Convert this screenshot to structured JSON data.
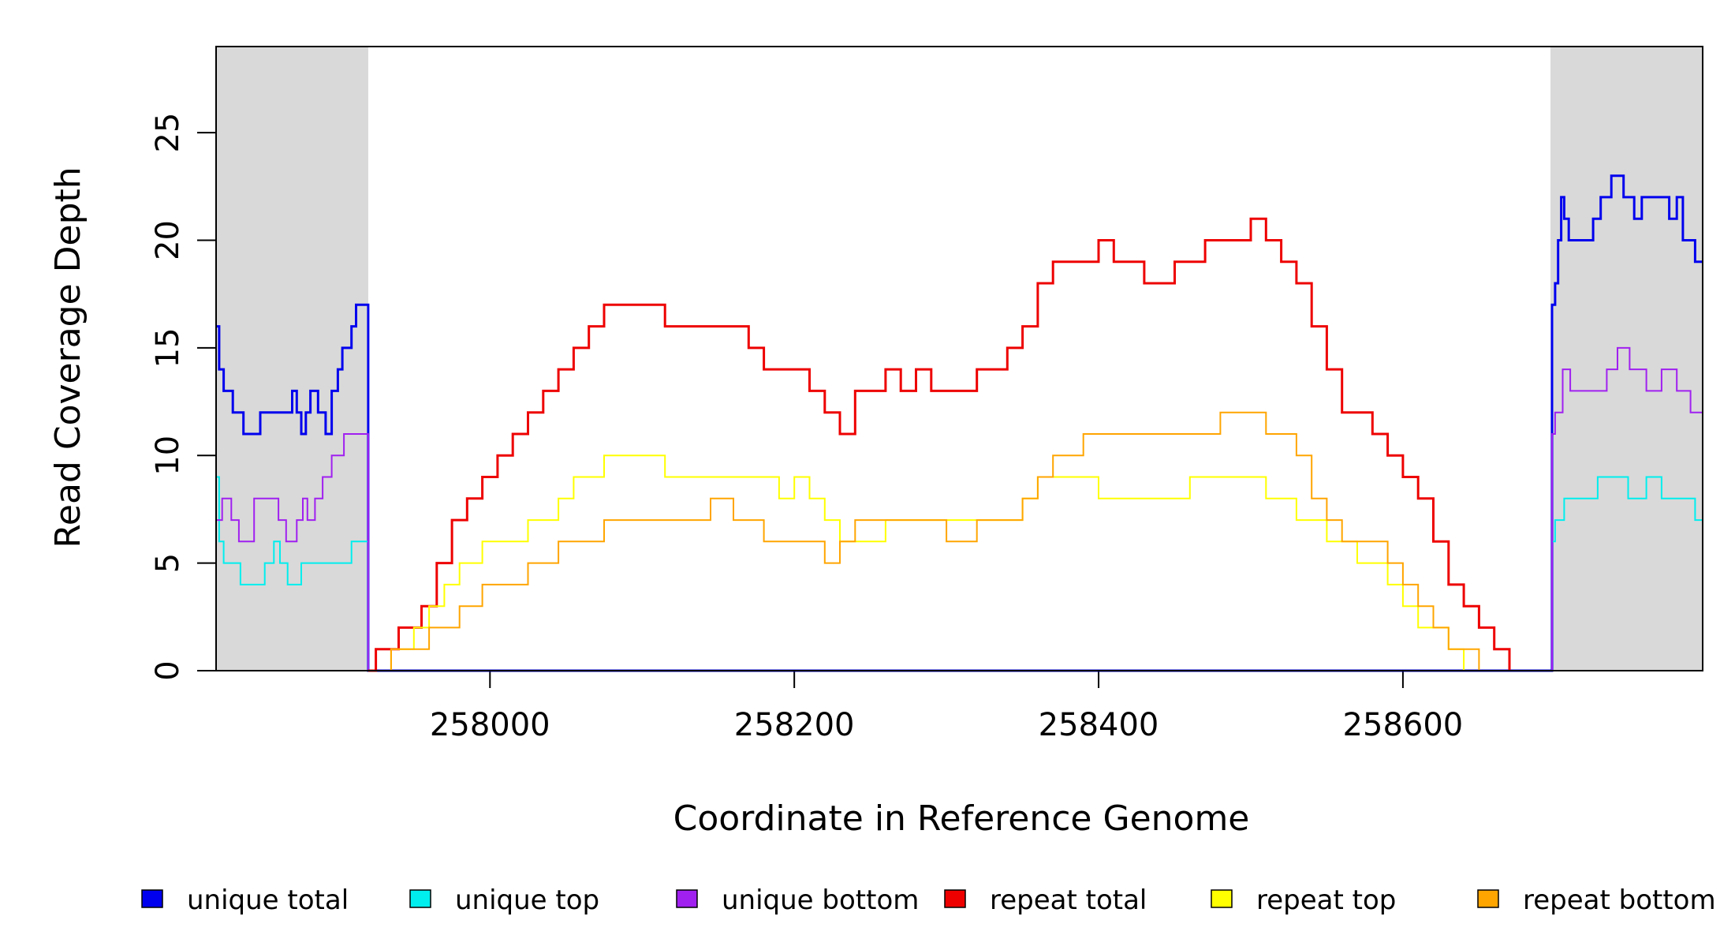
{
  "chart_data": {
    "type": "line",
    "title": "",
    "xlabel": "Coordinate in Reference Genome",
    "ylabel": "Read Coverage Depth",
    "xlim": [
      257820,
      258797
    ],
    "ylim": [
      0,
      29
    ],
    "x_ticks": [
      258000,
      258200,
      258400,
      258600
    ],
    "x_tick_labels": [
      "258000",
      "258200",
      "258400",
      "258600"
    ],
    "y_ticks": [
      0,
      5,
      10,
      15,
      20,
      25
    ],
    "y_tick_labels": [
      "0",
      "5",
      "10",
      "15",
      "20",
      "25"
    ],
    "grid": false,
    "legend_position": "bottom",
    "flank_regions": [
      [
        257820,
        257920
      ],
      [
        258697,
        258797
      ]
    ],
    "flank_color": "#d9d9d9",
    "series": [
      {
        "name": "unique total",
        "color": "#0000ee",
        "points": [
          [
            257820,
            16
          ],
          [
            257822,
            14
          ],
          [
            257825,
            13
          ],
          [
            257831,
            12
          ],
          [
            257838,
            11
          ],
          [
            257849,
            12
          ],
          [
            257870,
            13
          ],
          [
            257873,
            12
          ],
          [
            257876,
            11
          ],
          [
            257879,
            12
          ],
          [
            257882,
            13
          ],
          [
            257887,
            12
          ],
          [
            257892,
            11
          ],
          [
            257896,
            13
          ],
          [
            257900,
            14
          ],
          [
            257903,
            15
          ],
          [
            257909,
            16
          ],
          [
            257912,
            17
          ],
          [
            257918,
            17
          ],
          [
            257920,
            0
          ],
          [
            258697,
            0
          ],
          [
            258698,
            17
          ],
          [
            258700,
            18
          ],
          [
            258702,
            20
          ],
          [
            258704,
            22
          ],
          [
            258706,
            21
          ],
          [
            258709,
            20
          ],
          [
            258725,
            21
          ],
          [
            258730,
            22
          ],
          [
            258737,
            23
          ],
          [
            258745,
            22
          ],
          [
            258752,
            21
          ],
          [
            258757,
            22
          ],
          [
            258775,
            21
          ],
          [
            258780,
            22
          ],
          [
            258784,
            20
          ],
          [
            258792,
            19
          ],
          [
            258797,
            19
          ]
        ]
      },
      {
        "name": "unique top",
        "color": "#00eeee",
        "points": [
          [
            257820,
            9
          ],
          [
            257822,
            6
          ],
          [
            257825,
            5
          ],
          [
            257836,
            4
          ],
          [
            257852,
            5
          ],
          [
            257858,
            6
          ],
          [
            257862,
            5
          ],
          [
            257867,
            4
          ],
          [
            257876,
            5
          ],
          [
            257909,
            6
          ],
          [
            257920,
            0
          ],
          [
            258697,
            0
          ],
          [
            258698,
            6
          ],
          [
            258700,
            7
          ],
          [
            258706,
            8
          ],
          [
            258728,
            9
          ],
          [
            258748,
            8
          ],
          [
            258760,
            9
          ],
          [
            258770,
            8
          ],
          [
            258792,
            7
          ],
          [
            258797,
            7
          ]
        ]
      },
      {
        "name": "unique bottom",
        "color": "#a020f0",
        "points": [
          [
            257820,
            7
          ],
          [
            257824,
            8
          ],
          [
            257830,
            7
          ],
          [
            257835,
            6
          ],
          [
            257845,
            8
          ],
          [
            257861,
            7
          ],
          [
            257866,
            6
          ],
          [
            257873,
            7
          ],
          [
            257877,
            8
          ],
          [
            257880,
            7
          ],
          [
            257885,
            8
          ],
          [
            257890,
            9
          ],
          [
            257896,
            10
          ],
          [
            257904,
            11
          ],
          [
            257920,
            0
          ],
          [
            258697,
            0
          ],
          [
            258698,
            11
          ],
          [
            258700,
            12
          ],
          [
            258705,
            14
          ],
          [
            258710,
            13
          ],
          [
            258734,
            14
          ],
          [
            258741,
            15
          ],
          [
            258749,
            14
          ],
          [
            258760,
            13
          ],
          [
            258770,
            14
          ],
          [
            258780,
            13
          ],
          [
            258789,
            12
          ],
          [
            258797,
            12
          ]
        ]
      },
      {
        "name": "repeat total",
        "color": "#ee0000",
        "points": [
          [
            257920,
            0
          ],
          [
            257925,
            1
          ],
          [
            257940,
            2
          ],
          [
            257955,
            3
          ],
          [
            257965,
            5
          ],
          [
            257975,
            7
          ],
          [
            257985,
            8
          ],
          [
            257995,
            9
          ],
          [
            258005,
            10
          ],
          [
            258015,
            11
          ],
          [
            258025,
            12
          ],
          [
            258035,
            13
          ],
          [
            258045,
            14
          ],
          [
            258055,
            15
          ],
          [
            258065,
            16
          ],
          [
            258075,
            17
          ],
          [
            258085,
            17
          ],
          [
            258095,
            17
          ],
          [
            258105,
            17
          ],
          [
            258115,
            16
          ],
          [
            258130,
            16
          ],
          [
            258145,
            16
          ],
          [
            258160,
            16
          ],
          [
            258170,
            15
          ],
          [
            258180,
            14
          ],
          [
            258190,
            14
          ],
          [
            258200,
            14
          ],
          [
            258210,
            13
          ],
          [
            258220,
            12
          ],
          [
            258230,
            11
          ],
          [
            258240,
            13
          ],
          [
            258250,
            13
          ],
          [
            258260,
            14
          ],
          [
            258270,
            13
          ],
          [
            258280,
            14
          ],
          [
            258290,
            13
          ],
          [
            258300,
            13
          ],
          [
            258310,
            13
          ],
          [
            258320,
            14
          ],
          [
            258330,
            14
          ],
          [
            258340,
            15
          ],
          [
            258350,
            16
          ],
          [
            258360,
            18
          ],
          [
            258370,
            19
          ],
          [
            258380,
            19
          ],
          [
            258390,
            19
          ],
          [
            258400,
            20
          ],
          [
            258410,
            19
          ],
          [
            258420,
            19
          ],
          [
            258430,
            18
          ],
          [
            258440,
            18
          ],
          [
            258450,
            19
          ],
          [
            258460,
            19
          ],
          [
            258470,
            20
          ],
          [
            258480,
            20
          ],
          [
            258490,
            20
          ],
          [
            258500,
            21
          ],
          [
            258510,
            20
          ],
          [
            258520,
            19
          ],
          [
            258530,
            18
          ],
          [
            258540,
            16
          ],
          [
            258550,
            14
          ],
          [
            258560,
            12
          ],
          [
            258570,
            12
          ],
          [
            258580,
            11
          ],
          [
            258590,
            10
          ],
          [
            258600,
            9
          ],
          [
            258610,
            8
          ],
          [
            258620,
            6
          ],
          [
            258630,
            4
          ],
          [
            258640,
            3
          ],
          [
            258650,
            2
          ],
          [
            258660,
            1
          ],
          [
            258670,
            0
          ]
        ]
      },
      {
        "name": "repeat top",
        "color": "#ffff00",
        "points": [
          [
            257920,
            0
          ],
          [
            257935,
            1
          ],
          [
            257950,
            2
          ],
          [
            257960,
            3
          ],
          [
            257970,
            4
          ],
          [
            257980,
            5
          ],
          [
            257995,
            6
          ],
          [
            258010,
            6
          ],
          [
            258025,
            7
          ],
          [
            258035,
            7
          ],
          [
            258045,
            8
          ],
          [
            258055,
            9
          ],
          [
            258065,
            9
          ],
          [
            258075,
            10
          ],
          [
            258085,
            10
          ],
          [
            258095,
            10
          ],
          [
            258105,
            10
          ],
          [
            258115,
            9
          ],
          [
            258130,
            9
          ],
          [
            258145,
            9
          ],
          [
            258160,
            9
          ],
          [
            258170,
            9
          ],
          [
            258180,
            9
          ],
          [
            258190,
            8
          ],
          [
            258200,
            9
          ],
          [
            258210,
            8
          ],
          [
            258220,
            7
          ],
          [
            258230,
            6
          ],
          [
            258240,
            6
          ],
          [
            258250,
            6
          ],
          [
            258260,
            7
          ],
          [
            258270,
            7
          ],
          [
            258280,
            7
          ],
          [
            258290,
            7
          ],
          [
            258300,
            7
          ],
          [
            258310,
            7
          ],
          [
            258320,
            7
          ],
          [
            258330,
            7
          ],
          [
            258340,
            7
          ],
          [
            258350,
            8
          ],
          [
            258360,
            9
          ],
          [
            258370,
            9
          ],
          [
            258380,
            9
          ],
          [
            258390,
            9
          ],
          [
            258400,
            8
          ],
          [
            258410,
            8
          ],
          [
            258420,
            8
          ],
          [
            258430,
            8
          ],
          [
            258440,
            8
          ],
          [
            258450,
            8
          ],
          [
            258460,
            9
          ],
          [
            258470,
            9
          ],
          [
            258480,
            9
          ],
          [
            258490,
            9
          ],
          [
            258500,
            9
          ],
          [
            258510,
            8
          ],
          [
            258520,
            8
          ],
          [
            258530,
            7
          ],
          [
            258540,
            7
          ],
          [
            258550,
            6
          ],
          [
            258560,
            6
          ],
          [
            258570,
            5
          ],
          [
            258580,
            5
          ],
          [
            258590,
            4
          ],
          [
            258600,
            3
          ],
          [
            258610,
            2
          ],
          [
            258620,
            2
          ],
          [
            258630,
            1
          ],
          [
            258640,
            0
          ],
          [
            258670,
            0
          ]
        ]
      },
      {
        "name": "repeat bottom",
        "color": "#ffa500",
        "points": [
          [
            257920,
            0
          ],
          [
            257935,
            1
          ],
          [
            257950,
            1
          ],
          [
            257960,
            2
          ],
          [
            257970,
            2
          ],
          [
            257980,
            3
          ],
          [
            257995,
            4
          ],
          [
            258010,
            4
          ],
          [
            258025,
            5
          ],
          [
            258035,
            5
          ],
          [
            258045,
            6
          ],
          [
            258055,
            6
          ],
          [
            258065,
            6
          ],
          [
            258075,
            7
          ],
          [
            258085,
            7
          ],
          [
            258095,
            7
          ],
          [
            258105,
            7
          ],
          [
            258115,
            7
          ],
          [
            258130,
            7
          ],
          [
            258145,
            8
          ],
          [
            258160,
            7
          ],
          [
            258170,
            7
          ],
          [
            258180,
            6
          ],
          [
            258190,
            6
          ],
          [
            258200,
            6
          ],
          [
            258210,
            6
          ],
          [
            258220,
            5
          ],
          [
            258230,
            6
          ],
          [
            258240,
            7
          ],
          [
            258250,
            7
          ],
          [
            258260,
            7
          ],
          [
            258270,
            7
          ],
          [
            258280,
            7
          ],
          [
            258290,
            7
          ],
          [
            258300,
            6
          ],
          [
            258310,
            6
          ],
          [
            258320,
            7
          ],
          [
            258330,
            7
          ],
          [
            258340,
            7
          ],
          [
            258350,
            8
          ],
          [
            258360,
            9
          ],
          [
            258370,
            10
          ],
          [
            258380,
            10
          ],
          [
            258390,
            11
          ],
          [
            258400,
            11
          ],
          [
            258410,
            11
          ],
          [
            258420,
            11
          ],
          [
            258430,
            11
          ],
          [
            258440,
            11
          ],
          [
            258450,
            11
          ],
          [
            258460,
            11
          ],
          [
            258470,
            11
          ],
          [
            258480,
            12
          ],
          [
            258490,
            12
          ],
          [
            258500,
            12
          ],
          [
            258510,
            11
          ],
          [
            258520,
            11
          ],
          [
            258530,
            10
          ],
          [
            258540,
            8
          ],
          [
            258550,
            7
          ],
          [
            258560,
            6
          ],
          [
            258570,
            6
          ],
          [
            258580,
            6
          ],
          [
            258590,
            5
          ],
          [
            258600,
            4
          ],
          [
            258610,
            3
          ],
          [
            258620,
            2
          ],
          [
            258630,
            1
          ],
          [
            258640,
            1
          ],
          [
            258650,
            0
          ],
          [
            258670,
            0
          ]
        ]
      }
    ],
    "legend": [
      {
        "label": "unique total",
        "color": "#0000ee"
      },
      {
        "label": "unique top",
        "color": "#00eeee"
      },
      {
        "label": "unique bottom",
        "color": "#a020f0"
      },
      {
        "label": "repeat total",
        "color": "#ee0000"
      },
      {
        "label": "repeat top",
        "color": "#ffff00"
      },
      {
        "label": "repeat bottom",
        "color": "#ffa500"
      }
    ]
  }
}
